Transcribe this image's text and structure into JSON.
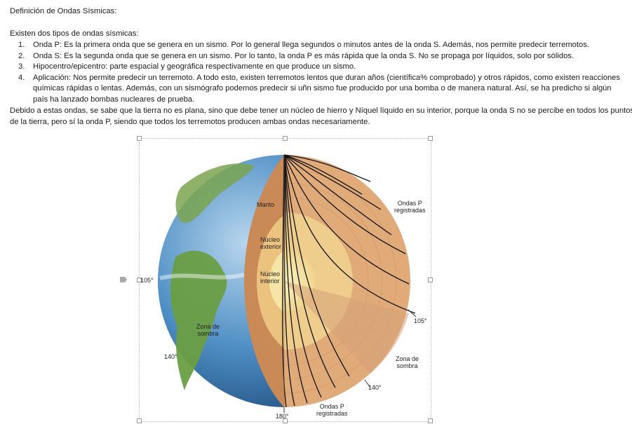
{
  "document": {
    "title": "Definición de Ondas Sísmicas:",
    "intro": "Existen dos tipos de ondas sísmicas:",
    "items": [
      {
        "num": "1.",
        "text": "Onda P: Es la primera onda que se genera en un sismo. Por lo general llega segundos o minutos antes de la onda S. Además, nos permite predecir terremotos."
      },
      {
        "num": "2.",
        "text": "Onda S: Es la segunda onda que se genera en un sismo. Por lo tanto, la onda P es más rápida que la onda S. No se propaga por líquidos, solo por sólidos."
      },
      {
        "num": "3.",
        "text": "Hipocentro/epicentro: parte espacial y geográfica respectivamente en que produce un sismo."
      },
      {
        "num": "4.",
        "text": "Aplicación: Nos permite predecir un terremoto. A todo esto, existen terremotos lentos que duran años (científica% comprobado) y otros rápidos, como existen reacciones químicas rápidas o lentas. Además, con un sismógrafo podemos predecir si uñn sismo fue producido por una bomba o de manera natural. Así, se ha predicho si algún país ha lanzado bombas nucleares de prueba."
      }
    ],
    "paragraph": "Debido a estas ondas, se sabe que la tierra no es plana, sino que debe tener un núcleo de hierro y Níquel líquido en su interior, porque la onda S no se percibe en todos los puntos de la tierra, pero sí la onda P, siendo que todos los terremotos producen ambas ondas necesariamente."
  },
  "figure": {
    "labels": {
      "manto": "Manto",
      "nucleo_exterior_1": "Núcleo",
      "nucleo_exterior_2": "exterior",
      "nucleo_interior_1": "Núcleo",
      "nucleo_interior_2": "interior",
      "ondas_p_top_1": "Ondas P",
      "ondas_p_top_2": "registradas",
      "ondas_p_bottom_1": "Ondas P",
      "ondas_p_bottom_2": "registradas",
      "zona_sombra_left_1": "Zona de",
      "zona_sombra_left_2": "sombra",
      "zona_sombra_right_1": "Zona de",
      "zona_sombra_right_2": "sombra",
      "deg_105_left": "105°",
      "deg_105_right": "105°",
      "deg_140_left": "140°",
      "deg_140_right": "140°",
      "deg_180": "180°"
    },
    "colors": {
      "mantle": "#e0a877",
      "outer_core": "#f2cf8c",
      "inner_core": "#f7e9b0",
      "ocean": "#3c7fb8",
      "land": "#5f9b3f",
      "ray": "#111111"
    }
  }
}
